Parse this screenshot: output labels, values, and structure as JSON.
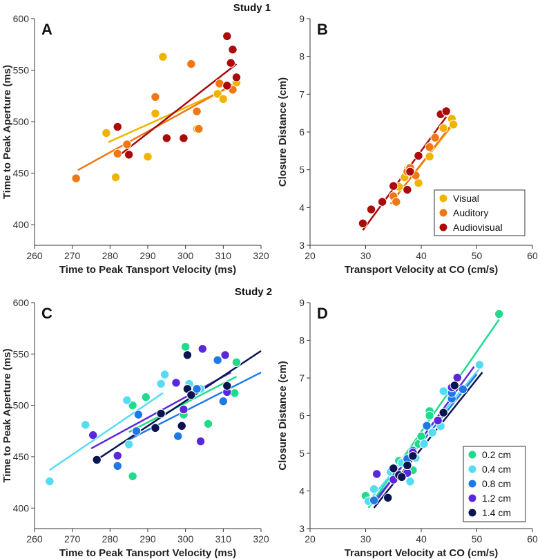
{
  "figure": {
    "study1_title": "Study 1",
    "study2_title": "Study 2"
  },
  "colors": {
    "Visual": "#F0B400",
    "Auditory": "#F07814",
    "Audiovisual": "#AA0A0A",
    "0.2 cm": "#1EDC8C",
    "0.4 cm": "#55DCF5",
    "0.8 cm": "#1E78E6",
    "1.2 cm": "#5A28DC",
    "1.4 cm": "#0A1450"
  },
  "chart_data": [
    {
      "id": "A",
      "letter": "A",
      "type": "scatter",
      "xlabel": "Time to Peak Tansport Velocity (ms)",
      "ylabel": "Time to Peak Aperture (ms)",
      "xlim": [
        260,
        320
      ],
      "ylim": [
        380,
        600
      ],
      "xticks": [
        260,
        270,
        280,
        290,
        300,
        310,
        320
      ],
      "yticks": [
        400,
        450,
        500,
        550,
        600
      ],
      "legend": null,
      "series": [
        {
          "name": "Visual",
          "points": [
            [
              279,
              489
            ],
            [
              281.5,
              446
            ],
            [
              290,
              466
            ],
            [
              292,
              508
            ],
            [
              294,
              563
            ],
            [
              303,
              493
            ],
            [
              308.5,
              527
            ],
            [
              310,
              522
            ],
            [
              313.5,
              538
            ]
          ],
          "fit": [
            [
              279.5,
              480
            ],
            [
              313.5,
              536
            ]
          ]
        },
        {
          "name": "Auditory",
          "points": [
            [
              271,
              445
            ],
            [
              282,
              469
            ],
            [
              284.5,
              478
            ],
            [
              292,
              524
            ],
            [
              301.5,
              556
            ],
            [
              303,
              510
            ],
            [
              303.5,
              493
            ],
            [
              309,
              537
            ],
            [
              312.5,
              531
            ]
          ],
          "fit": [
            [
              271.5,
              453
            ],
            [
              313.5,
              538
            ]
          ]
        },
        {
          "name": "Audiovisual",
          "points": [
            [
              282,
              495
            ],
            [
              285,
              468
            ],
            [
              295,
              484
            ],
            [
              299.5,
              484
            ],
            [
              311,
              583
            ],
            [
              311,
              535
            ],
            [
              312,
              557
            ],
            [
              312.5,
              570
            ],
            [
              313.5,
              543
            ]
          ],
          "fit": [
            [
              282,
              466
            ],
            [
              313.5,
              556
            ]
          ]
        }
      ]
    },
    {
      "id": "B",
      "letter": "B",
      "type": "scatter",
      "xlabel": "Transport Velocity at CO (cm/s)",
      "ylabel": "Closure Distance (cm)",
      "xlim": [
        20,
        60
      ],
      "ylim": [
        3,
        9
      ],
      "xticks": [
        20,
        30,
        40,
        50,
        60
      ],
      "yticks": [
        3,
        4,
        5,
        6,
        7,
        8,
        9
      ],
      "legend": [
        "Visual",
        "Auditory",
        "Audiovisual"
      ],
      "series": [
        {
          "name": "Visual",
          "points": [
            [
              36,
              4.55
            ],
            [
              37,
              4.8
            ],
            [
              37.5,
              5.0
            ],
            [
              38,
              4.95
            ],
            [
              39.5,
              4.65
            ],
            [
              41.5,
              5.35
            ],
            [
              44,
              6.1
            ],
            [
              45.5,
              6.35
            ],
            [
              45.8,
              6.2
            ]
          ],
          "fit": [
            [
              35.5,
              4.3
            ],
            [
              46,
              6.25
            ]
          ]
        },
        {
          "name": "Auditory",
          "points": [
            [
              35,
              4.3
            ],
            [
              35.5,
              4.15
            ],
            [
              37.5,
              4.95
            ],
            [
              38,
              5.05
            ],
            [
              39,
              4.85
            ],
            [
              41.5,
              5.6
            ],
            [
              42.5,
              5.85
            ]
          ],
          "fit": [
            [
              34.5,
              4.1
            ],
            [
              46,
              6.3
            ]
          ]
        },
        {
          "name": "Audiovisual",
          "points": [
            [
              29.5,
              3.58
            ],
            [
              31,
              3.95
            ],
            [
              33,
              4.15
            ],
            [
              35,
              4.57
            ],
            [
              37.5,
              4.47
            ],
            [
              38,
              4.95
            ],
            [
              39.5,
              5.37
            ],
            [
              43.5,
              6.47
            ],
            [
              44.5,
              6.55
            ]
          ],
          "fit": [
            [
              29.5,
              3.4
            ],
            [
              44.5,
              6.4
            ]
          ]
        }
      ]
    },
    {
      "id": "C",
      "letter": "C",
      "type": "scatter",
      "xlabel": "Time to Peak Tansport Velocity (ms)",
      "ylabel": "Time to Peak Aperture (ms)",
      "xlim": [
        260,
        320
      ],
      "ylim": [
        380,
        600
      ],
      "xticks": [
        260,
        270,
        280,
        290,
        300,
        310,
        320
      ],
      "yticks": [
        400,
        450,
        500,
        550,
        600
      ],
      "legend": null,
      "series": [
        {
          "name": "0.2 cm",
          "points": [
            [
              286,
              500
            ],
            [
              286,
              431
            ],
            [
              289.5,
              508
            ],
            [
              300,
              557
            ],
            [
              299.5,
              491
            ],
            [
              306,
              482
            ],
            [
              313,
              512
            ],
            [
              313.5,
              542
            ]
          ],
          "fit": [
            [
              285,
              474
            ],
            [
              313.5,
              528
            ]
          ]
        },
        {
          "name": "0.4 cm",
          "points": [
            [
              264,
              426
            ],
            [
              273.5,
              481
            ],
            [
              284.5,
              505
            ],
            [
              285,
              462
            ],
            [
              293.5,
              521
            ],
            [
              294.5,
              530
            ],
            [
              301,
              521
            ],
            [
              304,
              516
            ]
          ],
          "fit": [
            [
              264,
              437
            ],
            [
              294,
              512
            ]
          ]
        },
        {
          "name": "0.8 cm",
          "points": [
            [
              282,
              441
            ],
            [
              287,
              475
            ],
            [
              287.5,
              491
            ],
            [
              298,
              470
            ],
            [
              303,
              516
            ],
            [
              308.5,
              544
            ],
            [
              310,
              504
            ]
          ],
          "fit": [
            [
              282.5,
              462
            ],
            [
              320,
              532
            ]
          ]
        },
        {
          "name": "1.2 cm",
          "points": [
            [
              275.5,
              471
            ],
            [
              282,
              451
            ],
            [
              297.5,
              522
            ],
            [
              299.5,
              496
            ],
            [
              304,
              465
            ],
            [
              304.5,
              555
            ],
            [
              310.5,
              549
            ],
            [
              311,
              513
            ]
          ],
          "fit": [
            [
              275,
              458
            ],
            [
              312,
              532
            ]
          ]
        },
        {
          "name": "1.4 cm",
          "points": [
            [
              276.5,
              447
            ],
            [
              292,
              478
            ],
            [
              293.5,
              492
            ],
            [
              299,
              480
            ],
            [
              300.5,
              549
            ],
            [
              300.5,
              516
            ],
            [
              301.5,
              510
            ],
            [
              311,
              519
            ]
          ],
          "fit": [
            [
              276.5,
              447
            ],
            [
              320,
              553
            ]
          ]
        }
      ]
    },
    {
      "id": "D",
      "letter": "D",
      "type": "scatter",
      "xlabel": "Transport Velocity at CO (cm/s)",
      "ylabel": "Closure Distance (cm)",
      "xlim": [
        20,
        60
      ],
      "ylim": [
        3,
        9
      ],
      "xticks": [
        20,
        30,
        40,
        50,
        60
      ],
      "yticks": [
        3,
        4,
        5,
        6,
        7,
        8,
        9
      ],
      "legend": [
        "0.2 cm",
        "0.4 cm",
        "0.8 cm",
        "1.2 cm",
        "1.4 cm"
      ],
      "series": [
        {
          "name": "0.2 cm",
          "points": [
            [
              30,
              3.87
            ],
            [
              36,
              4.8
            ],
            [
              38.5,
              4.55
            ],
            [
              39.5,
              5.25
            ],
            [
              40,
              5.45
            ],
            [
              41.5,
              6.12
            ],
            [
              41.5,
              6.0
            ],
            [
              54,
              8.7
            ]
          ],
          "fit": [
            [
              30.5,
              3.55
            ],
            [
              54,
              8.55
            ]
          ]
        },
        {
          "name": "0.4 cm",
          "points": [
            [
              30.5,
              3.73
            ],
            [
              31.5,
              4.05
            ],
            [
              34.5,
              4.5
            ],
            [
              36.5,
              4.75
            ],
            [
              38,
              4.25
            ],
            [
              39,
              4.88
            ],
            [
              40.5,
              5.25
            ],
            [
              42,
              5.55
            ],
            [
              43.5,
              5.72
            ],
            [
              44,
              6.65
            ],
            [
              50.5,
              7.35
            ]
          ],
          "fit": [
            [
              30.5,
              3.72
            ],
            [
              50.5,
              7.25
            ]
          ]
        },
        {
          "name": "0.8 cm",
          "points": [
            [
              31.5,
              3.75
            ],
            [
              35.5,
              4.4
            ],
            [
              37.5,
              4.85
            ],
            [
              38.5,
              5.07
            ],
            [
              41,
              5.73
            ],
            [
              45.5,
              6.45
            ],
            [
              45.5,
              6.6
            ],
            [
              47.5,
              6.7
            ]
          ],
          "fit": [
            [
              31,
              3.63
            ],
            [
              50,
              7.1
            ]
          ]
        },
        {
          "name": "1.2 cm",
          "points": [
            [
              32,
              4.45
            ],
            [
              35,
              4.3
            ],
            [
              37.5,
              4.48
            ],
            [
              38.5,
              5.02
            ],
            [
              43,
              5.87
            ],
            [
              45.5,
              6.75
            ],
            [
              46.5,
              7.01
            ]
          ],
          "fit": [
            [
              31.5,
              3.65
            ],
            [
              49.5,
              7.3
            ]
          ]
        },
        {
          "name": "1.4 cm",
          "points": [
            [
              34,
              3.82
            ],
            [
              35,
              4.6
            ],
            [
              36,
              4.42
            ],
            [
              36.5,
              4.37
            ],
            [
              37.5,
              4.68
            ],
            [
              38.5,
              4.93
            ],
            [
              44,
              6.08
            ],
            [
              46,
              6.8
            ]
          ],
          "fit": [
            [
              31.5,
              3.55
            ],
            [
              51,
              7.15
            ]
          ]
        }
      ]
    }
  ]
}
